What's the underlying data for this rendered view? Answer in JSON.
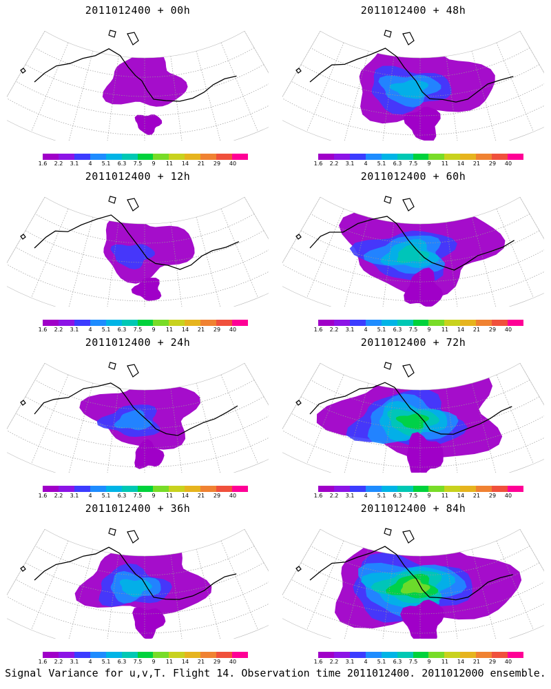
{
  "panels": [
    {
      "title": "2011012400 + 00h",
      "lead_hours": 0
    },
    {
      "title": "2011012400 + 48h",
      "lead_hours": 48
    },
    {
      "title": "2011012400 + 12h",
      "lead_hours": 12
    },
    {
      "title": "2011012400 + 60h",
      "lead_hours": 60
    },
    {
      "title": "2011012400 + 24h",
      "lead_hours": 24
    },
    {
      "title": "2011012400 + 72h",
      "lead_hours": 72
    },
    {
      "title": "2011012400 + 36h",
      "lead_hours": 36
    },
    {
      "title": "2011012400 + 84h",
      "lead_hours": 84
    }
  ],
  "colorbar": {
    "labels": [
      "1.6",
      "2.2",
      "3.1",
      "4",
      "5.1",
      "6.3",
      "7.5",
      "9",
      "11",
      "14",
      "21",
      "29",
      "40"
    ],
    "colors": [
      "#a000c8",
      "#8c14e6",
      "#3c3cff",
      "#1e8cff",
      "#00b4e6",
      "#00c8b4",
      "#00d23c",
      "#78dc28",
      "#c8d21e",
      "#e6b41e",
      "#f08232",
      "#f0503c",
      "#ff0096"
    ]
  },
  "footer": "Signal Variance for u,v,T. Flight 14. Observation time 2011012400. 2011012000 ensemble."
}
